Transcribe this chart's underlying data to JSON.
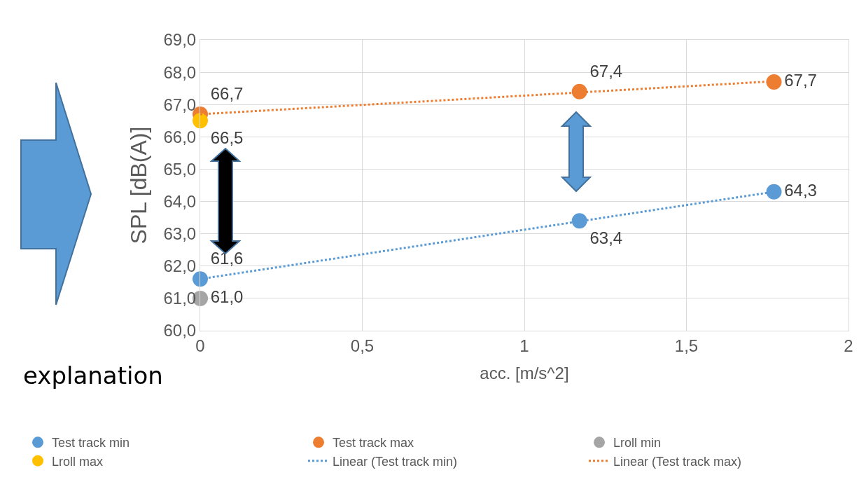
{
  "chart_data": {
    "type": "scatter",
    "xlabel": "acc. [m/s^2]",
    "ylabel": "SPL [dB(A)]",
    "xlim": [
      0,
      2
    ],
    "xticks": [
      0,
      {
        "value": 0.5,
        "label": "0,5"
      },
      1,
      {
        "value": 1.5,
        "label": "1,5"
      },
      2
    ],
    "ylim": [
      60,
      69
    ],
    "yticks": [
      {
        "value": 60,
        "label": "60,0"
      },
      {
        "value": 61,
        "label": "61,0"
      },
      {
        "value": 62,
        "label": "62,0"
      },
      {
        "value": 63,
        "label": "63,0"
      },
      {
        "value": 64,
        "label": "64,0"
      },
      {
        "value": 65,
        "label": "65,0"
      },
      {
        "value": 66,
        "label": "66,0"
      },
      {
        "value": 67,
        "label": "67,0"
      },
      {
        "value": 68,
        "label": "68,0"
      },
      {
        "value": 69,
        "label": "69,0"
      }
    ],
    "grid": true,
    "legend": "bottom",
    "marker": "circle",
    "annotations": [
      "explanation"
    ],
    "series": [
      {
        "name": "Test track min",
        "color": "#5b9bd5",
        "x": [
          0,
          1.17,
          1.77
        ],
        "values": [
          61.6,
          63.4,
          64.3
        ],
        "value_labels": [
          "61,6",
          "63,4",
          "64,3"
        ]
      },
      {
        "name": "Test track max",
        "color": "#ed7d31",
        "x": [
          0,
          1.17,
          1.77
        ],
        "values": [
          66.7,
          67.4,
          67.7
        ],
        "value_labels": [
          "66,7",
          "67,4",
          "67,7"
        ]
      },
      {
        "name": "Lroll min",
        "color": "#a5a5a5",
        "x": [
          0
        ],
        "values": [
          61.0
        ],
        "value_labels": [
          "61,0"
        ]
      },
      {
        "name": "Lroll max",
        "color": "#ffc000",
        "x": [
          0
        ],
        "values": [
          66.5
        ],
        "value_labels": [
          "66,5"
        ]
      },
      {
        "name": "Linear (Test track min)",
        "type": "line",
        "color": "#5b9bd5",
        "x": [
          0,
          1.77
        ],
        "values": [
          61.6,
          64.3
        ],
        "line_style": "dotted",
        "marker": "none"
      },
      {
        "name": "Linear (Test track max)",
        "type": "line",
        "color": "#ed7d31",
        "x": [
          0,
          1.77
        ],
        "values": [
          66.7,
          67.72
        ],
        "line_style": "dotted",
        "marker": "none"
      }
    ]
  }
}
